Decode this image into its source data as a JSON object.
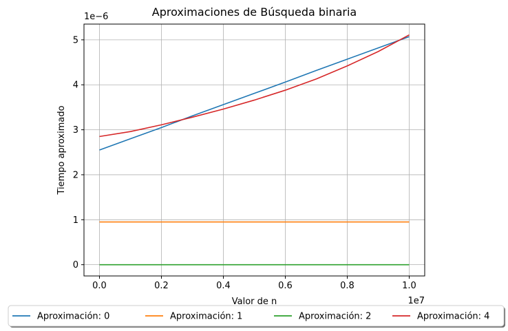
{
  "chart_data": {
    "type": "line",
    "title": "Aproximaciones de Búsqueda binaria",
    "xlabel": "Valor de n",
    "ylabel": "Tiempo aproximado",
    "x_offset_text": "1e7",
    "y_offset_text": "1e−6",
    "xlim": [
      -0.05,
      1.05
    ],
    "ylim": [
      -0.25,
      5.35
    ],
    "x_ticks": [
      0.0,
      0.2,
      0.4,
      0.6,
      0.8,
      1.0
    ],
    "x_tick_labels": [
      "0.0",
      "0.2",
      "0.4",
      "0.6",
      "0.8",
      "1.0"
    ],
    "y_ticks": [
      0,
      1,
      2,
      3,
      4,
      5
    ],
    "y_tick_labels": [
      "0",
      "1",
      "2",
      "3",
      "4",
      "5"
    ],
    "grid": true,
    "legend_position": "bottom-center outside",
    "x": [
      0.0,
      0.1,
      0.2,
      0.3,
      0.4,
      0.5,
      0.6,
      0.7,
      0.8,
      0.9,
      1.0
    ],
    "series": [
      {
        "name": "Aproximación: 0",
        "color": "#1f77b4",
        "values": [
          2.55,
          2.8,
          3.05,
          3.31,
          3.56,
          3.81,
          4.06,
          4.32,
          4.57,
          4.82,
          5.07
        ]
      },
      {
        "name": "Aproximación: 1",
        "color": "#ff7f0e",
        "values": [
          0.95,
          0.95,
          0.95,
          0.95,
          0.95,
          0.95,
          0.95,
          0.95,
          0.95,
          0.95,
          0.95
        ]
      },
      {
        "name": "Aproximación: 2",
        "color": "#2ca02c",
        "values": [
          0.0,
          0.0,
          0.0,
          0.0,
          0.0,
          0.0,
          0.0,
          0.0,
          0.0,
          0.0,
          0.0
        ]
      },
      {
        "name": "Aproximación: 4",
        "color": "#d62728",
        "values": [
          2.85,
          2.96,
          3.11,
          3.28,
          3.46,
          3.66,
          3.88,
          4.13,
          4.42,
          4.74,
          5.11
        ]
      }
    ]
  }
}
